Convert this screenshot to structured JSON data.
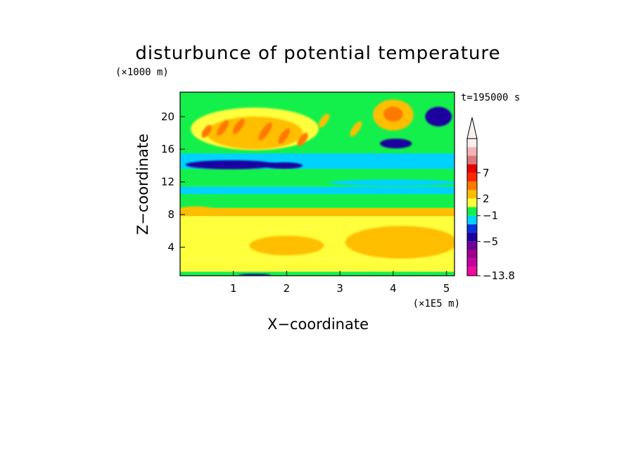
{
  "chart_data": {
    "type": "heatmap",
    "title": "disturbunce of potential temperature",
    "y_unit_label": "(×1000 m)",
    "x_unit_label": "(×1E5 m)",
    "time_label": "t=195000 s",
    "xlabel": "X−coordinate",
    "ylabel": "Z−coordinate",
    "xlim": [
      0,
      5.15
    ],
    "ylim": [
      0.5,
      23
    ],
    "x_ticks": [
      1,
      2,
      3,
      4,
      5
    ],
    "y_ticks": [
      4,
      8,
      12,
      16,
      20
    ],
    "colorbar": {
      "colors": [
        "#f00aa0",
        "#c8009e",
        "#a0008c",
        "#6e0096",
        "#1e00a0",
        "#0a32dc",
        "#00d2ff",
        "#14f04b",
        "#ffff3c",
        "#ffbe00",
        "#ff7800",
        "#ff2800",
        "#e60000",
        "#dc7878",
        "#f5b4b4",
        "#faf0f0"
      ],
      "labels": [
        {
          "text": "−13.8",
          "level": 0
        },
        {
          "text": "−5",
          "level": 4
        },
        {
          "text": "−1",
          "level": 7
        },
        {
          "text": "2",
          "level": 9
        },
        {
          "text": "7",
          "level": 12
        }
      ]
    },
    "bands": [
      {
        "z0": 0.5,
        "z1": 1.0,
        "color": "#14f04b"
      },
      {
        "z0": 1.0,
        "z1": 2.5,
        "color": "#ffff3c"
      },
      {
        "z0": 2.5,
        "z1": 6.5,
        "color": "#ffff3c"
      },
      {
        "z0": 6.5,
        "z1": 7.8,
        "color": "#ffff3c"
      },
      {
        "z0": 7.8,
        "z1": 8.8,
        "color": "#ffbe00"
      },
      {
        "z0": 8.8,
        "z1": 10.5,
        "color": "#14f04b"
      },
      {
        "z0": 10.5,
        "z1": 11.4,
        "color": "#00d2ff"
      },
      {
        "z0": 11.4,
        "z1": 13.6,
        "color": "#14f04b"
      },
      {
        "z0": 13.6,
        "z1": 15.5,
        "color": "#00d2ff"
      },
      {
        "z0": 15.5,
        "z1": 23.0,
        "color": "#14f04b"
      }
    ],
    "features": [
      {
        "shape": "ellipse",
        "x": 4.15,
        "z": 4.6,
        "rx": 1.05,
        "rz": 2.0,
        "color": "#ffbe00"
      },
      {
        "shape": "ellipse",
        "x": 2.0,
        "z": 4.2,
        "rx": 0.7,
        "rz": 1.2,
        "color": "#ffbe00"
      },
      {
        "shape": "ellipse",
        "x": 0.3,
        "z": 8.5,
        "rx": 0.35,
        "rz": 0.5,
        "color": "#ffbe00"
      },
      {
        "shape": "ellipse",
        "x": 4.0,
        "z": 11.9,
        "rx": 1.2,
        "rz": 0.4,
        "color": "#00d2ff"
      },
      {
        "shape": "ellipse",
        "x": 0.95,
        "z": 14.1,
        "rx": 0.85,
        "rz": 0.55,
        "color": "#1e00a0"
      },
      {
        "shape": "ellipse",
        "x": 1.95,
        "z": 14.0,
        "rx": 0.35,
        "rz": 0.4,
        "color": "#1e00a0"
      },
      {
        "shape": "ellipse",
        "x": 4.05,
        "z": 16.7,
        "rx": 0.3,
        "rz": 0.6,
        "color": "#1e00a0"
      },
      {
        "shape": "ellipse",
        "x": 4.0,
        "z": 20.2,
        "rx": 0.38,
        "rz": 1.9,
        "color": "#ffbe00"
      },
      {
        "shape": "ellipse",
        "x": 4.0,
        "z": 20.3,
        "rx": 0.18,
        "rz": 0.9,
        "color": "#ff7800"
      },
      {
        "shape": "ellipse",
        "x": 4.85,
        "z": 20.0,
        "rx": 0.25,
        "rz": 1.2,
        "color": "#1e00a0"
      },
      {
        "shape": "ellipse",
        "x": 1.4,
        "z": 0.6,
        "rx": 0.3,
        "rz": 0.15,
        "color": "#1e00a0"
      },
      {
        "shape": "ellipse",
        "x": 1.4,
        "z": 18.5,
        "rx": 1.2,
        "rz": 2.6,
        "color": "#ffff3c"
      },
      {
        "shape": "ellipse",
        "x": 1.4,
        "z": 18.0,
        "rx": 0.9,
        "rz": 2.0,
        "color": "#ffbe00"
      },
      {
        "shape": "streak",
        "x": 0.5,
        "z": 18.2,
        "len": 1.8,
        "color": "#ff7800"
      },
      {
        "shape": "streak",
        "x": 0.8,
        "z": 18.6,
        "len": 2.2,
        "color": "#ff7800"
      },
      {
        "shape": "streak",
        "x": 1.1,
        "z": 18.8,
        "len": 2.2,
        "color": "#ff7800"
      },
      {
        "shape": "streak",
        "x": 1.6,
        "z": 18.2,
        "len": 2.6,
        "color": "#ff7800"
      },
      {
        "shape": "streak",
        "x": 1.95,
        "z": 17.6,
        "len": 2.2,
        "color": "#ff7800"
      },
      {
        "shape": "streak",
        "x": 2.3,
        "z": 17.2,
        "len": 1.9,
        "color": "#ff7800"
      },
      {
        "shape": "streak",
        "x": 2.7,
        "z": 19.5,
        "len": 2.0,
        "color": "#ffbe00"
      },
      {
        "shape": "streak",
        "x": 3.3,
        "z": 18.5,
        "len": 2.2,
        "color": "#ffbe00"
      }
    ]
  }
}
